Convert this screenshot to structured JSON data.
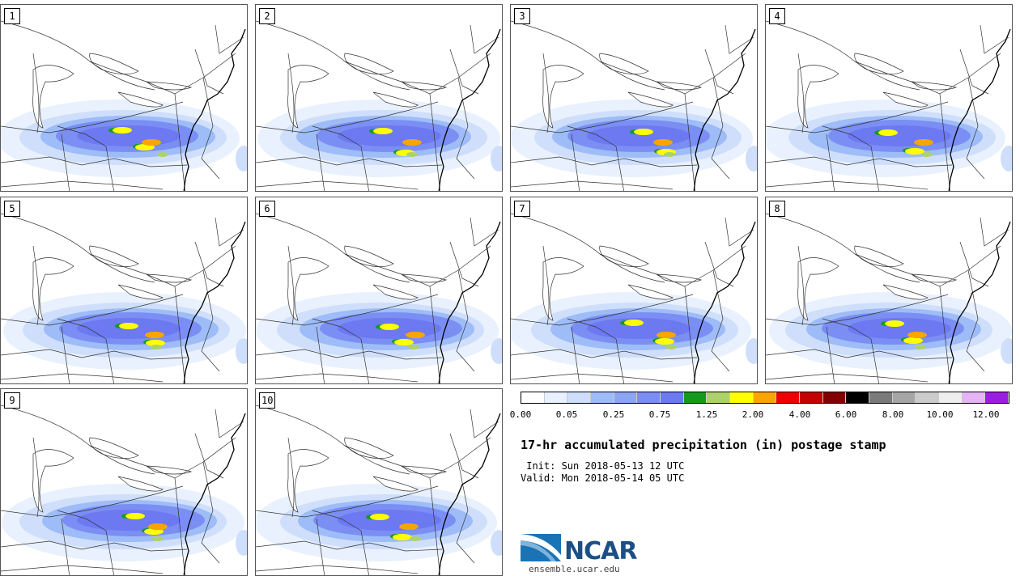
{
  "stamps": [
    {
      "label": "1"
    },
    {
      "label": "2"
    },
    {
      "label": "3"
    },
    {
      "label": "4"
    },
    {
      "label": "5"
    },
    {
      "label": "6"
    },
    {
      "label": "7"
    },
    {
      "label": "8"
    },
    {
      "label": "9"
    },
    {
      "label": "10"
    }
  ],
  "colorbar": {
    "colors": [
      "#ffffff",
      "#e8f1fd",
      "#cfdffb",
      "#9ebcf7",
      "#8aa6f5",
      "#7b8ef4",
      "#6c79f1",
      "#159a1d",
      "#aed26b",
      "#ffff00",
      "#f9a500",
      "#ee0000",
      "#c50000",
      "#820000",
      "#000000",
      "#7a7a7a",
      "#a6a6a6",
      "#cbcbcb",
      "#eeeeee",
      "#e6b4f6",
      "#9a1ee0"
    ],
    "tick_labels": [
      "0.00",
      "0.05",
      "0.25",
      "0.75",
      "1.25",
      "2.00",
      "4.00",
      "6.00",
      "8.00",
      "10.00",
      "12.00"
    ]
  },
  "title": "17-hr accumulated precipitation (in) postage stamp",
  "init_line": " Init: Sun 2018-05-13 12 UTC",
  "valid_line": "Valid: Mon 2018-05-14 05 UTC",
  "logo": {
    "text": "NCAR",
    "url": "ensemble.ucar.edu"
  }
}
